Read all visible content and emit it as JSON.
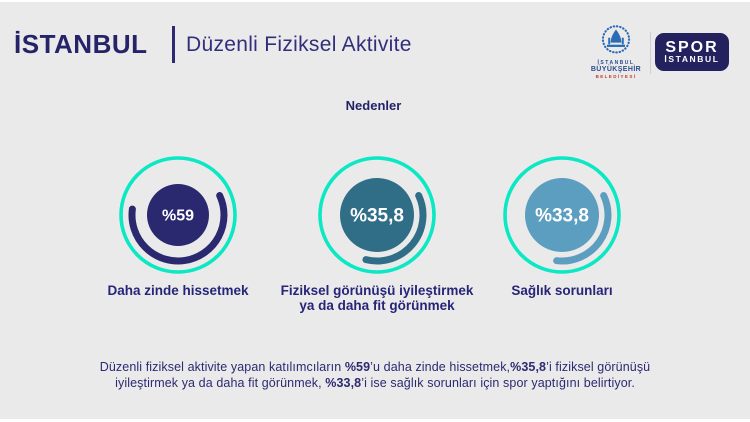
{
  "header": {
    "brand": "İSTANBUL",
    "title": "Düzenli Fiziksel Aktivite",
    "ibb_logo": {
      "line1": "İSTANBUL",
      "line2": "BÜYÜKŞEHİR",
      "line3": "BELEDİYESİ"
    },
    "spor_logo": {
      "line1": "SPOR",
      "line2": "İSTANBUL"
    }
  },
  "badge": {
    "label": "Nedenler"
  },
  "chart_data": {
    "type": "pie",
    "variant": "percent-ring-donuts",
    "title": "Nedenler",
    "unit": "%",
    "categories": [
      "Daha zinde hissetmek",
      "Fiziksel görünüşü iyileştirmek ya da daha fit görünmek",
      "Sağlık sorunları"
    ],
    "values": [
      59,
      35.8,
      33.8
    ],
    "value_labels": [
      "%59",
      "%35,8",
      "%33,8"
    ],
    "colors": [
      "#2A2970",
      "#306E88",
      "#5C9EC0"
    ],
    "ring_color": "#0AE8C4",
    "label_lines": [
      [
        "Daha zinde hissetmek"
      ],
      [
        "Fiziksel görünüşü iyileştirmek",
        "ya da daha fit görünmek"
      ],
      [
        "Sağlık sorunları"
      ]
    ]
  },
  "footer": {
    "lines": [
      [
        {
          "t": "Düzenli fiziksel aktivite yapan katılımcıların ",
          "b": false
        },
        {
          "t": "%59",
          "b": true
        },
        {
          "t": "’u daha zinde hissetmek,",
          "b": false
        },
        {
          "t": "%35,8",
          "b": true
        },
        {
          "t": "’i fiziksel görünüşü",
          "b": false
        }
      ],
      [
        {
          "t": "iyileştirmek ya da daha fit görünmek, ",
          "b": false
        },
        {
          "t": "%33,8",
          "b": true
        },
        {
          "t": "’i ise sağlık sorunları için spor yaptığını belirtiyor.",
          "b": false
        }
      ]
    ]
  },
  "colors": {
    "navy": "#2A2970",
    "teal": "#306E88",
    "steel_blue": "#5C9EC0",
    "turquoise": "#0AE8C4",
    "background": "#EBEAEA",
    "ibb_blue": "#2C6CB5",
    "ibb_red": "#C0392B",
    "spor_navy": "#23225E"
  }
}
